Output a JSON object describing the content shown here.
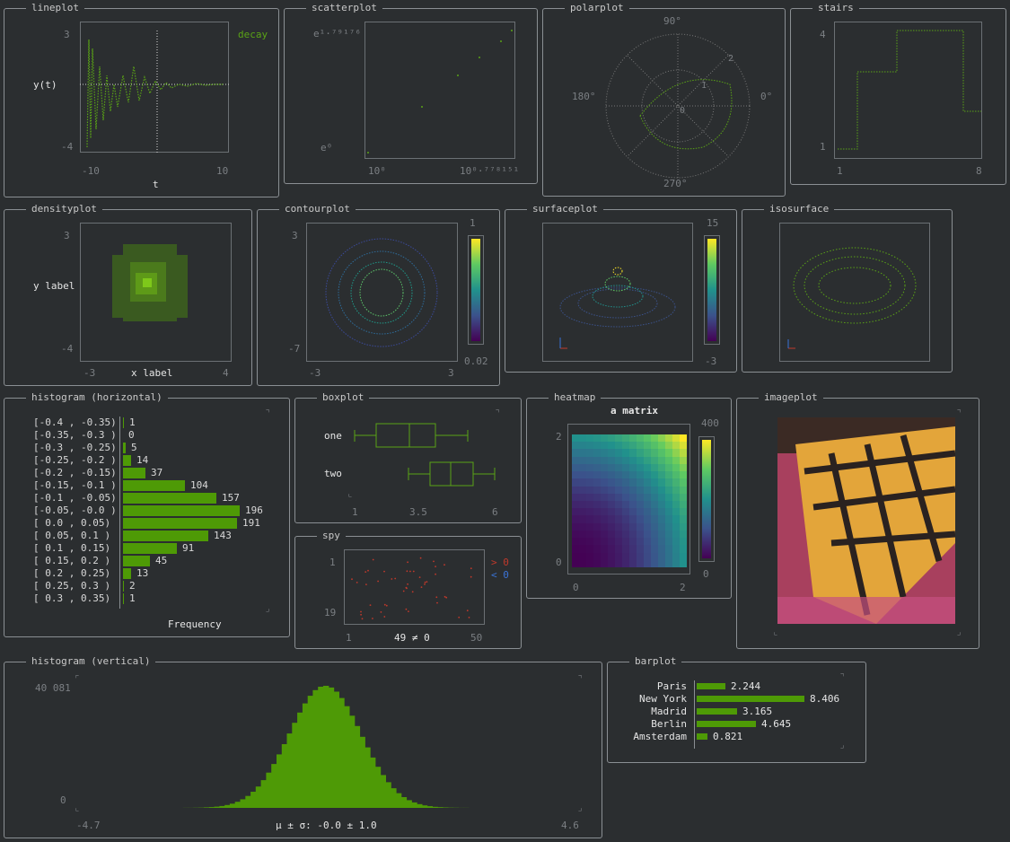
{
  "colors": {
    "background": "#2b2e30",
    "border": "#8a8f93",
    "green": "#4e9a06",
    "dim": "#7b7f83",
    "red": "#c0392b",
    "blue": "#3a73d6"
  },
  "lineplot": {
    "title": "lineplot",
    "ylabel": "y(t)",
    "xlabel": "t",
    "ytick_top": "3",
    "ytick_bottom": "-4",
    "xtick_left": "-10",
    "xtick_right": "10",
    "legend": "decay"
  },
  "scatterplot": {
    "title": "scatterplot",
    "ytick_top": "e¹·⁷⁹¹⁷⁶",
    "ytick_bottom": "e⁰",
    "xtick_left": "10⁰",
    "xtick_right": "10⁰·⁷⁷⁸¹⁵¹"
  },
  "polarplot": {
    "title": "polarplot",
    "label_top": "90°",
    "label_left": "180°",
    "label_right": "0°",
    "label_bottom": "270°",
    "r1": "1",
    "r2": "2",
    "r0": "0"
  },
  "stairs": {
    "title": "stairs",
    "ytick_top": "4",
    "ytick_bottom": "1",
    "xtick_left": "1",
    "xtick_right": "8"
  },
  "densityplot": {
    "title": "densityplot",
    "ylabel": "y label",
    "xlabel": "x label",
    "ytick_top": "3",
    "ytick_bottom": "-4",
    "xtick_left": "-3",
    "xtick_right": "4"
  },
  "contourplot": {
    "title": "contourplot",
    "ytick_top": "3",
    "ytick_bottom": "-7",
    "xtick_left": "-3",
    "xtick_right": "3",
    "cbar_top": "1",
    "cbar_bottom": "0.02"
  },
  "surfaceplot": {
    "title": "surfaceplot",
    "cbar_top": "15",
    "cbar_bottom": "-3"
  },
  "isosurface": {
    "title": "isosurface"
  },
  "hist_horizontal": {
    "title": "histogram (horizontal)",
    "xlabel": "Frequency",
    "bins": [
      {
        "label": "[-0.4 , -0.35)",
        "count": "1",
        "value": 1
      },
      {
        "label": "[-0.35, -0.3 )",
        "count": "0",
        "value": 0
      },
      {
        "label": "[-0.3 , -0.25)",
        "count": "5",
        "value": 5
      },
      {
        "label": "[-0.25, -0.2 )",
        "count": "14",
        "value": 14
      },
      {
        "label": "[-0.2 , -0.15)",
        "count": "37",
        "value": 37
      },
      {
        "label": "[-0.15, -0.1 )",
        "count": "104",
        "value": 104
      },
      {
        "label": "[-0.1 , -0.05)",
        "count": "157",
        "value": 157
      },
      {
        "label": "[-0.05, -0.0 )",
        "count": "196",
        "value": 196
      },
      {
        "label": "[ 0.0 ,  0.05)",
        "count": "191",
        "value": 191
      },
      {
        "label": "[ 0.05,  0.1 )",
        "count": "143",
        "value": 143
      },
      {
        "label": "[ 0.1 ,  0.15)",
        "count": "91",
        "value": 91
      },
      {
        "label": "[ 0.15,  0.2 )",
        "count": "45",
        "value": 45
      },
      {
        "label": "[ 0.2 ,  0.25)",
        "count": "13",
        "value": 13
      },
      {
        "label": "[ 0.25,  0.3 )",
        "count": "2",
        "value": 2
      },
      {
        "label": "[ 0.3 ,  0.35)",
        "count": "1",
        "value": 1
      }
    ]
  },
  "boxplot": {
    "title": "boxplot",
    "series": [
      "one",
      "two"
    ],
    "xtick_left": "1",
    "xtick_mid": "3.5",
    "xtick_right": "6"
  },
  "spy": {
    "title": "spy",
    "ytick_top": "1",
    "ytick_bottom": "19",
    "xtick_left": "1",
    "xtick_right": "50",
    "caption": "49 ≠ 0",
    "legend_pos": "> 0",
    "legend_neg": "< 0"
  },
  "heatmap": {
    "title": "heatmap",
    "subtitle": "a matrix",
    "ytick_top": "2",
    "ytick_bottom": "0",
    "xtick_left": "0",
    "xtick_right": "2",
    "cbar_top": "400",
    "cbar_bottom": "0"
  },
  "imageplot": {
    "title": "imageplot"
  },
  "hist_vertical": {
    "title": "histogram (vertical)",
    "ytick_top": "40 081",
    "ytick_bottom": "0",
    "xtick_left": "-4.7",
    "xtick_right": "4.6",
    "caption": "μ ± σ: -0.0 ± 1.0"
  },
  "barplot": {
    "title": "barplot",
    "bars": [
      {
        "label": "Paris",
        "text": "2.244",
        "value": 2.244
      },
      {
        "label": "New York",
        "text": "8.406",
        "value": 8.406
      },
      {
        "label": "Madrid",
        "text": "3.165",
        "value": 3.165
      },
      {
        "label": "Berlin",
        "text": "4.645",
        "value": 4.645
      },
      {
        "label": "Amsterdam",
        "text": "0.821",
        "value": 0.821
      }
    ]
  }
}
